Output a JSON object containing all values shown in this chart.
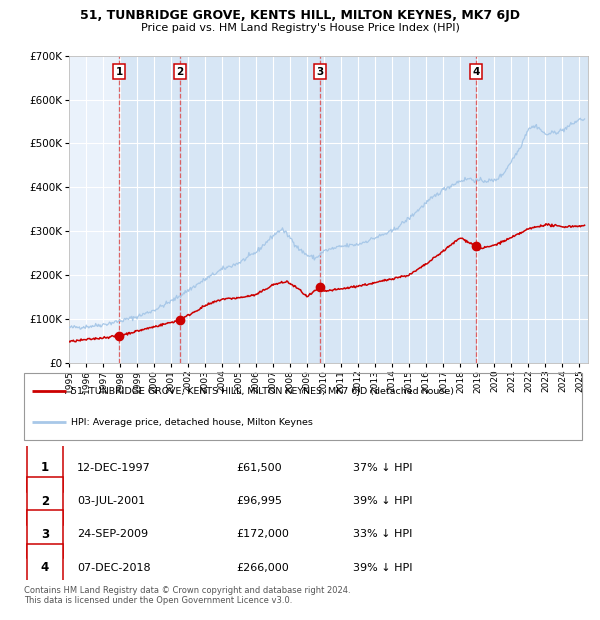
{
  "title": "51, TUNBRIDGE GROVE, KENTS HILL, MILTON KEYNES, MK7 6JD",
  "subtitle": "Price paid vs. HM Land Registry's House Price Index (HPI)",
  "hpi_color": "#a8c8e8",
  "price_color": "#cc0000",
  "dashed_line_color": "#dd5555",
  "shade_color": "#c0d8ef",
  "plot_bg": "#eaf2fb",
  "sales": [
    {
      "label": "1",
      "date": 1997.95,
      "price": 61500
    },
    {
      "label": "2",
      "date": 2001.5,
      "price": 96995
    },
    {
      "label": "3",
      "date": 2009.73,
      "price": 172000
    },
    {
      "label": "4",
      "date": 2018.93,
      "price": 266000
    }
  ],
  "ylim": [
    0,
    700000
  ],
  "xlim": [
    1995,
    2025.5
  ],
  "yticks": [
    0,
    100000,
    200000,
    300000,
    400000,
    500000,
    600000,
    700000
  ],
  "ytick_labels": [
    "£0",
    "£100K",
    "£200K",
    "£300K",
    "£400K",
    "£500K",
    "£600K",
    "£700K"
  ],
  "legend_line1": "51, TUNBRIDGE GROVE, KENTS HILL, MILTON KEYNES, MK7 6JD (detached house)",
  "legend_line2": "HPI: Average price, detached house, Milton Keynes",
  "table_rows": [
    [
      "1",
      "12-DEC-1997",
      "£61,500",
      "37% ↓ HPI"
    ],
    [
      "2",
      "03-JUL-2001",
      "£96,995",
      "39% ↓ HPI"
    ],
    [
      "3",
      "24-SEP-2009",
      "£172,000",
      "33% ↓ HPI"
    ],
    [
      "4",
      "07-DEC-2018",
      "£266,000",
      "39% ↓ HPI"
    ]
  ],
  "footer": "Contains HM Land Registry data © Crown copyright and database right 2024.\nThis data is licensed under the Open Government Licence v3.0."
}
